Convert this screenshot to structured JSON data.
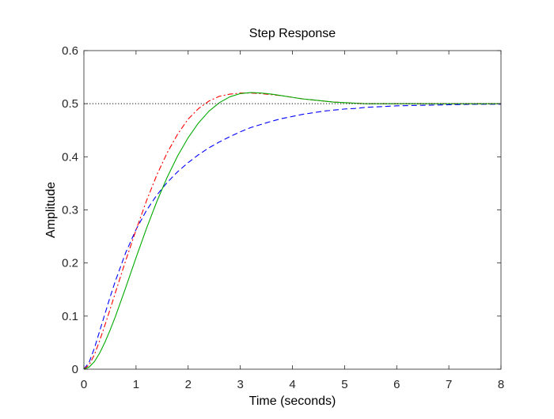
{
  "chart_data": {
    "type": "line",
    "title": "Step Response",
    "xlabel": "Time (seconds)",
    "ylabel": "Amplitude",
    "xlim": [
      0,
      8
    ],
    "ylim": [
      0,
      0.6
    ],
    "xticks": [
      0,
      1,
      2,
      3,
      4,
      5,
      6,
      7,
      8
    ],
    "yticks": [
      0,
      0.1,
      0.2,
      0.3,
      0.4,
      0.5,
      0.6
    ],
    "xtick_labels": [
      "0",
      "1",
      "2",
      "3",
      "4",
      "5",
      "6",
      "7",
      "8"
    ],
    "ytick_labels": [
      "0",
      "0.1",
      "0.2",
      "0.3",
      "0.4",
      "0.5",
      "0.6"
    ],
    "grid": false,
    "reference_line": {
      "y": 0.5,
      "style": "dotted",
      "color": "#000000"
    },
    "x": [
      0,
      0.1,
      0.2,
      0.3,
      0.4,
      0.5,
      0.6,
      0.8,
      1.0,
      1.2,
      1.4,
      1.6,
      1.8,
      2.0,
      2.2,
      2.4,
      2.6,
      2.8,
      3.0,
      3.2,
      3.4,
      3.6,
      3.8,
      4.0,
      4.2,
      4.4,
      4.6,
      4.8,
      5.0,
      5.2,
      5.4,
      5.6,
      5.8,
      6.0,
      6.5,
      7.0,
      7.5,
      8.0
    ],
    "series": [
      {
        "color": "#0000ff",
        "style": "dashed",
        "values": [
          0,
          0.013,
          0.039,
          0.071,
          0.103,
          0.135,
          0.165,
          0.219,
          0.263,
          0.299,
          0.328,
          0.352,
          0.372,
          0.389,
          0.404,
          0.417,
          0.428,
          0.438,
          0.447,
          0.455,
          0.461,
          0.467,
          0.472,
          0.476,
          0.48,
          0.483,
          0.486,
          0.488,
          0.49,
          0.491,
          0.493,
          0.494,
          0.495,
          0.496,
          0.497,
          0.498,
          0.499,
          0.499
        ]
      },
      {
        "color": "#ff0000",
        "style": "dashdot",
        "values": [
          0,
          0.008,
          0.027,
          0.053,
          0.082,
          0.112,
          0.143,
          0.204,
          0.262,
          0.317,
          0.366,
          0.408,
          0.443,
          0.471,
          0.491,
          0.505,
          0.514,
          0.518,
          0.52,
          0.52,
          0.519,
          0.517,
          0.515,
          0.512,
          0.509,
          0.507,
          0.505,
          0.503,
          0.502,
          0.501,
          0.5,
          0.5,
          0.5,
          0.5,
          0.5,
          0.5,
          0.5,
          0.5
        ]
      },
      {
        "color": "#00aa00",
        "style": "solid",
        "values": [
          0,
          0.004,
          0.014,
          0.03,
          0.05,
          0.073,
          0.098,
          0.153,
          0.21,
          0.265,
          0.316,
          0.362,
          0.402,
          0.436,
          0.464,
          0.486,
          0.502,
          0.513,
          0.519,
          0.521,
          0.52,
          0.518,
          0.515,
          0.512,
          0.509,
          0.507,
          0.505,
          0.503,
          0.502,
          0.501,
          0.5,
          0.5,
          0.5,
          0.5,
          0.5,
          0.5,
          0.5,
          0.5
        ]
      }
    ]
  }
}
